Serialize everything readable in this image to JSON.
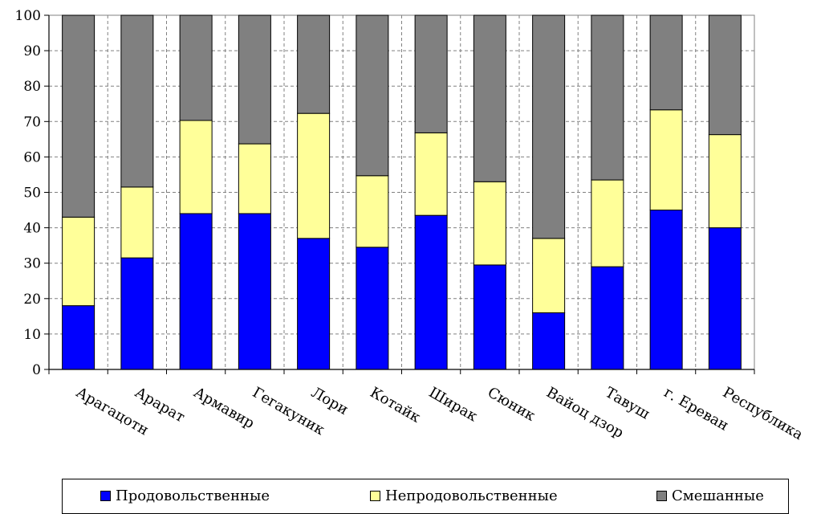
{
  "chart_data": {
    "type": "bar",
    "stacked": true,
    "categories": [
      "Арагацотн",
      "Арарат",
      "Армавир",
      "Гегакуник",
      "Лори",
      "Котайк",
      "Ширак",
      "Сюник",
      "Вайоц дзор",
      "Тавуш",
      "г. Ереван",
      "Республика"
    ],
    "series": [
      {
        "name": "Продовольственные",
        "color": "#0000FF",
        "values": [
          18,
          31.5,
          44,
          44,
          37,
          34.5,
          43.5,
          29.5,
          16,
          29,
          45,
          40
        ]
      },
      {
        "name": "Непродовольственные",
        "color": "#FFFF99",
        "values": [
          25,
          20,
          26.3,
          19.7,
          35.3,
          20.2,
          23.3,
          23.5,
          21,
          24.5,
          28.3,
          26.3
        ]
      },
      {
        "name": "Смешанные",
        "color": "#808080",
        "values": [
          57,
          48.5,
          29.7,
          36.3,
          27.7,
          45.3,
          33.2,
          47,
          63,
          46.5,
          26.7,
          33.7
        ]
      }
    ],
    "yticks": [
      0,
      10,
      20,
      30,
      40,
      50,
      60,
      70,
      80,
      90,
      100
    ],
    "ylim": [
      0,
      100
    ],
    "grid": true,
    "legend_position": "bottom"
  }
}
